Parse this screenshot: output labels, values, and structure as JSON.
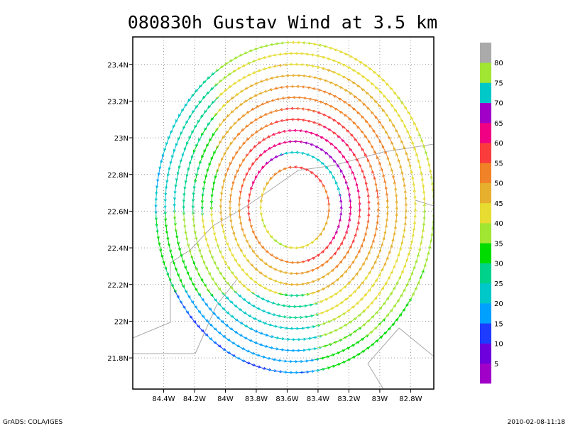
{
  "chart_data": {
    "type": "vector-field",
    "title": "080830h Gustav Wind at 3.5 km",
    "xlabel": "",
    "ylabel": "",
    "xlim": [
      -84.6,
      -82.65
    ],
    "ylim": [
      21.63,
      23.55
    ],
    "x_ticks": [
      {
        "value": -84.4,
        "label": "84.4W"
      },
      {
        "value": -84.2,
        "label": "84.2W"
      },
      {
        "value": -84.0,
        "label": "84W"
      },
      {
        "value": -83.8,
        "label": "83.8W"
      },
      {
        "value": -83.6,
        "label": "83.6W"
      },
      {
        "value": -83.4,
        "label": "83.4W"
      },
      {
        "value": -83.2,
        "label": "83.2W"
      },
      {
        "value": -83.0,
        "label": "83W"
      },
      {
        "value": -82.8,
        "label": "82.8W"
      }
    ],
    "y_ticks": [
      {
        "value": 23.4,
        "label": "23.4N"
      },
      {
        "value": 23.2,
        "label": "23.2N"
      },
      {
        "value": 23.0,
        "label": "23N"
      },
      {
        "value": 22.8,
        "label": "22.8N"
      },
      {
        "value": 22.6,
        "label": "22.6N"
      },
      {
        "value": 22.4,
        "label": "22.4N"
      },
      {
        "value": 22.2,
        "label": "22.2N"
      },
      {
        "value": 22.0,
        "label": "22N"
      },
      {
        "value": 21.8,
        "label": "21.8N"
      }
    ],
    "grid": true,
    "storm_center": {
      "lon": -83.55,
      "lat": 22.62
    },
    "wind_speed_rings": [
      {
        "radius_deg": 0.22,
        "speed": 48
      },
      {
        "radius_deg": 0.3,
        "speed": 62
      },
      {
        "radius_deg": 0.36,
        "speed": 57
      },
      {
        "radius_deg": 0.42,
        "speed": 54
      },
      {
        "radius_deg": 0.48,
        "speed": 51
      },
      {
        "radius_deg": 0.54,
        "speed": 48
      },
      {
        "radius_deg": 0.6,
        "speed": 46
      },
      {
        "radius_deg": 0.66,
        "speed": 44
      },
      {
        "radius_deg": 0.72,
        "speed": 42
      },
      {
        "radius_deg": 0.78,
        "speed": 39
      },
      {
        "radius_deg": 0.84,
        "speed": 37
      },
      {
        "radius_deg": 0.9,
        "speed": 35
      }
    ],
    "colorbar": {
      "levels": [
        "5",
        "10",
        "15",
        "20",
        "25",
        "30",
        "35",
        "40",
        "45",
        "50",
        "55",
        "60",
        "65",
        "70",
        "75",
        "80"
      ],
      "colors": [
        "#a000c8",
        "#6e00dc",
        "#1e3cff",
        "#00a0ff",
        "#00c8c8",
        "#00d28c",
        "#00dc00",
        "#a0e632",
        "#e6dc32",
        "#e6af2d",
        "#f08228",
        "#fa3c3c",
        "#f00082",
        "#a000c8",
        "#00c8c8",
        "#a0e632",
        "#aaaaaa"
      ]
    },
    "footer_left": "GrADS: COLA/IGES",
    "footer_right": "2010-02-08-11:18"
  }
}
